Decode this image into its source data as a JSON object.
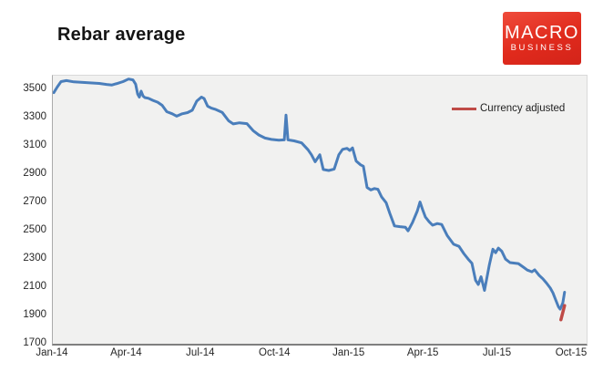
{
  "title": "Rebar average",
  "logo": {
    "line1": "MACRO",
    "line2": "BUSINESS",
    "bg_color": "#e02a1c",
    "text_color": "#ffffff"
  },
  "legend": {
    "label": "Currency adjusted",
    "swatch_color": "#bf4b47"
  },
  "colors": {
    "main_line": "#4a7ebb",
    "adjusted_line": "#bf4b47",
    "plot_background": "#f1f1f0",
    "axis_line": "#7f7f7f",
    "tick_text": "#262626"
  },
  "chart_data": {
    "type": "line",
    "title": "Rebar average",
    "xlabel": "",
    "ylabel": "",
    "grid": false,
    "legend_position": "inside-top-right",
    "ylim": [
      1700,
      3600
    ],
    "y_ticks": [
      3500,
      3300,
      3100,
      2900,
      2700,
      2500,
      2300,
      2100,
      1900,
      1700
    ],
    "x_months_lim": [
      0,
      21.59
    ],
    "x_tick_positions_months": [
      0,
      3,
      6,
      9,
      12,
      15,
      18,
      21
    ],
    "x_tick_labels": [
      "Jan-14",
      "Apr-14",
      "Jul-14",
      "Oct-14",
      "Jan-15",
      "Apr-15",
      "Jul-15",
      "Oct-15"
    ],
    "series": [
      {
        "name": "Rebar average",
        "color": "#4a7ebb",
        "width": 3,
        "points": [
          [
            0.04,
            3480
          ],
          [
            0.18,
            3520
          ],
          [
            0.33,
            3558
          ],
          [
            0.55,
            3565
          ],
          [
            0.85,
            3556
          ],
          [
            1.22,
            3552
          ],
          [
            1.58,
            3548
          ],
          [
            1.88,
            3545
          ],
          [
            2.17,
            3538
          ],
          [
            2.39,
            3534
          ],
          [
            2.62,
            3546
          ],
          [
            2.84,
            3558
          ],
          [
            3.06,
            3576
          ],
          [
            3.24,
            3570
          ],
          [
            3.35,
            3540
          ],
          [
            3.43,
            3470
          ],
          [
            3.5,
            3448
          ],
          [
            3.57,
            3490
          ],
          [
            3.65,
            3455
          ],
          [
            3.72,
            3445
          ],
          [
            3.87,
            3440
          ],
          [
            4.05,
            3425
          ],
          [
            4.24,
            3412
          ],
          [
            4.42,
            3390
          ],
          [
            4.61,
            3345
          ],
          [
            4.83,
            3330
          ],
          [
            5.01,
            3313
          ],
          [
            5.23,
            3330
          ],
          [
            5.45,
            3338
          ],
          [
            5.64,
            3355
          ],
          [
            5.82,
            3420
          ],
          [
            6.01,
            3448
          ],
          [
            6.12,
            3438
          ],
          [
            6.26,
            3384
          ],
          [
            6.41,
            3370
          ],
          [
            6.56,
            3362
          ],
          [
            6.85,
            3340
          ],
          [
            7.11,
            3280
          ],
          [
            7.3,
            3258
          ],
          [
            7.55,
            3266
          ],
          [
            7.85,
            3260
          ],
          [
            8.1,
            3210
          ],
          [
            8.33,
            3180
          ],
          [
            8.58,
            3158
          ],
          [
            8.84,
            3148
          ],
          [
            9.14,
            3143
          ],
          [
            9.36,
            3145
          ],
          [
            9.43,
            3320
          ],
          [
            9.51,
            3145
          ],
          [
            9.76,
            3138
          ],
          [
            10.06,
            3124
          ],
          [
            10.32,
            3075
          ],
          [
            10.46,
            3040
          ],
          [
            10.61,
            2990
          ],
          [
            10.8,
            3040
          ],
          [
            10.94,
            2935
          ],
          [
            11.16,
            2928
          ],
          [
            11.38,
            2938
          ],
          [
            11.57,
            3040
          ],
          [
            11.72,
            3078
          ],
          [
            11.9,
            3085
          ],
          [
            12.01,
            3070
          ],
          [
            12.12,
            3088
          ],
          [
            12.27,
            2995
          ],
          [
            12.45,
            2968
          ],
          [
            12.56,
            2958
          ],
          [
            12.71,
            2808
          ],
          [
            12.86,
            2790
          ],
          [
            13.01,
            2800
          ],
          [
            13.15,
            2795
          ],
          [
            13.3,
            2740
          ],
          [
            13.48,
            2700
          ],
          [
            13.63,
            2625
          ],
          [
            13.82,
            2535
          ],
          [
            14.04,
            2530
          ],
          [
            14.26,
            2526
          ],
          [
            14.37,
            2500
          ],
          [
            14.55,
            2560
          ],
          [
            14.74,
            2640
          ],
          [
            14.85,
            2705
          ],
          [
            14.96,
            2650
          ],
          [
            15.07,
            2598
          ],
          [
            15.22,
            2565
          ],
          [
            15.36,
            2540
          ],
          [
            15.55,
            2552
          ],
          [
            15.73,
            2545
          ],
          [
            15.95,
            2468
          ],
          [
            16.21,
            2405
          ],
          [
            16.43,
            2390
          ],
          [
            16.62,
            2340
          ],
          [
            16.8,
            2300
          ],
          [
            16.95,
            2270
          ],
          [
            17.1,
            2150
          ],
          [
            17.21,
            2120
          ],
          [
            17.32,
            2175
          ],
          [
            17.46,
            2078
          ],
          [
            17.65,
            2255
          ],
          [
            17.8,
            2370
          ],
          [
            17.91,
            2345
          ],
          [
            18.02,
            2378
          ],
          [
            18.16,
            2355
          ],
          [
            18.31,
            2300
          ],
          [
            18.49,
            2275
          ],
          [
            18.83,
            2268
          ],
          [
            19.05,
            2240
          ],
          [
            19.19,
            2222
          ],
          [
            19.38,
            2210
          ],
          [
            19.49,
            2224
          ],
          [
            19.67,
            2185
          ],
          [
            19.82,
            2160
          ],
          [
            19.97,
            2130
          ],
          [
            20.12,
            2095
          ],
          [
            20.23,
            2060
          ],
          [
            20.34,
            2010
          ],
          [
            20.45,
            1962
          ],
          [
            20.52,
            1945
          ],
          [
            20.63,
            1990
          ],
          [
            20.7,
            2065
          ]
        ]
      },
      {
        "name": "Currency adjusted",
        "color": "#bf4b47",
        "width": 3.5,
        "points": [
          [
            20.55,
            1870
          ],
          [
            20.7,
            1970
          ]
        ]
      }
    ]
  }
}
